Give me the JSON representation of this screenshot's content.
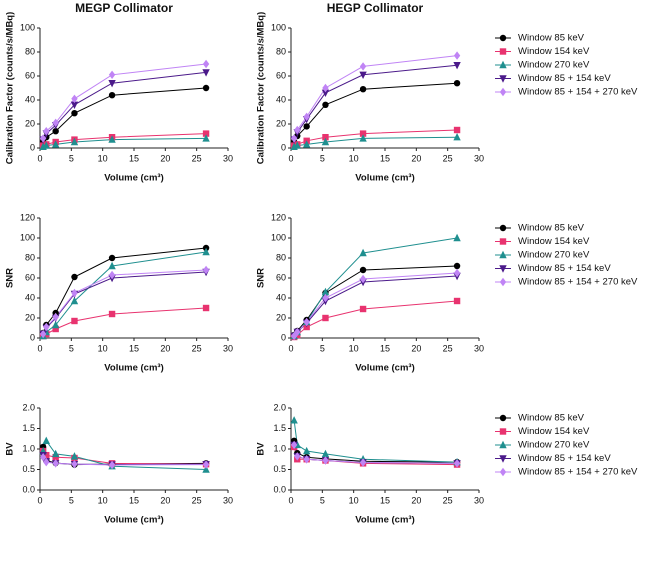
{
  "chart_data": [
    {
      "type": "line",
      "title": "MEGP Collimator",
      "x_label": "Volume (cm³)",
      "y_label": "Calibration Factor (counts/s/MBq)",
      "x": [
        0.5,
        1,
        2.5,
        5.5,
        11.5,
        26.5
      ],
      "xlim": [
        0,
        30
      ],
      "xticks": [
        0,
        5,
        10,
        15,
        20,
        25,
        30
      ],
      "ylim": [
        0,
        100
      ],
      "yticks": [
        0,
        20,
        40,
        60,
        80,
        100
      ],
      "series": [
        {
          "color": "#000000",
          "marker": "circle",
          "values": [
            5,
            9,
            14,
            29,
            44,
            50
          ]
        },
        {
          "color": "#e8336f",
          "marker": "square",
          "values": [
            2,
            3,
            5,
            7,
            9,
            12
          ]
        },
        {
          "color": "#1f8f8f",
          "marker": "triangle",
          "values": [
            1,
            2,
            3,
            5,
            7,
            8
          ]
        },
        {
          "color": "#4b1a8a",
          "marker": "triangle-down",
          "values": [
            7,
            12,
            19,
            36,
            54,
            63
          ]
        },
        {
          "color": "#c084f5",
          "marker": "diamond",
          "values": [
            8,
            14,
            21,
            41,
            61,
            70
          ]
        }
      ]
    },
    {
      "type": "line",
      "title": "HEGP Collimator",
      "x_label": "Volume (cm³)",
      "y_label": "Calibration Factor (counts/s/MBq)",
      "x": [
        0.5,
        1,
        2.5,
        5.5,
        11.5,
        26.5
      ],
      "xlim": [
        0,
        30
      ],
      "xticks": [
        0,
        5,
        10,
        15,
        20,
        25,
        30
      ],
      "ylim": [
        0,
        100
      ],
      "yticks": [
        0,
        20,
        40,
        60,
        80,
        100
      ],
      "legend": "outside-right",
      "series": [
        {
          "name": "Window 85 keV",
          "color": "#000000",
          "marker": "circle",
          "values": [
            5,
            10,
            18,
            36,
            49,
            54
          ]
        },
        {
          "name": "Window 154 keV",
          "color": "#e8336f",
          "marker": "square",
          "values": [
            2,
            3,
            6,
            9,
            12,
            15
          ]
        },
        {
          "name": "Window 270 keV",
          "color": "#1f8f8f",
          "marker": "triangle",
          "values": [
            1,
            2,
            3,
            5,
            8,
            9
          ]
        },
        {
          "name": "Window 85 + 154 keV",
          "color": "#4b1a8a",
          "marker": "triangle-down",
          "values": [
            7,
            13,
            24,
            46,
            61,
            69
          ]
        },
        {
          "name": "Window 85 + 154 + 270 keV",
          "color": "#c084f5",
          "marker": "diamond",
          "values": [
            8,
            15,
            26,
            50,
            68,
            77
          ]
        }
      ]
    },
    {
      "type": "line",
      "x_label": "Volume (cm³)",
      "y_label": "SNR",
      "x": [
        0.5,
        1,
        2.5,
        5.5,
        11.5,
        26.5
      ],
      "xlim": [
        0,
        30
      ],
      "xticks": [
        0,
        5,
        10,
        15,
        20,
        25,
        30
      ],
      "ylim": [
        0,
        120
      ],
      "yticks": [
        0,
        20,
        40,
        60,
        80,
        100,
        120
      ],
      "series": [
        {
          "color": "#000000",
          "marker": "circle",
          "values": [
            5,
            13,
            25,
            61,
            80,
            90
          ]
        },
        {
          "color": "#e8336f",
          "marker": "square",
          "values": [
            2,
            4,
            9,
            17,
            24,
            30
          ]
        },
        {
          "color": "#1f8f8f",
          "marker": "triangle",
          "values": [
            2,
            6,
            13,
            37,
            72,
            86
          ]
        },
        {
          "color": "#4b1a8a",
          "marker": "triangle-down",
          "values": [
            4,
            10,
            20,
            44,
            60,
            66
          ]
        },
        {
          "color": "#c084f5",
          "marker": "diamond",
          "values": [
            4,
            11,
            21,
            45,
            63,
            68
          ]
        }
      ]
    },
    {
      "type": "line",
      "x_label": "Volume (cm³)",
      "y_label": "SNR",
      "x": [
        0.5,
        1,
        2.5,
        5.5,
        11.5,
        26.5
      ],
      "xlim": [
        0,
        30
      ],
      "xticks": [
        0,
        5,
        10,
        15,
        20,
        25,
        30
      ],
      "ylim": [
        0,
        120
      ],
      "yticks": [
        0,
        20,
        40,
        60,
        80,
        100,
        120
      ],
      "legend": "outside-right",
      "series": [
        {
          "name": "Window 85 keV",
          "color": "#000000",
          "marker": "circle",
          "values": [
            3,
            7,
            18,
            45,
            68,
            72
          ]
        },
        {
          "name": "Window 154 keV",
          "color": "#e8336f",
          "marker": "square",
          "values": [
            1,
            3,
            11,
            20,
            29,
            37
          ]
        },
        {
          "name": "Window 270 keV",
          "color": "#1f8f8f",
          "marker": "triangle",
          "values": [
            2,
            6,
            16,
            46,
            85,
            100
          ]
        },
        {
          "name": "Window 85 + 154 keV",
          "color": "#4b1a8a",
          "marker": "triangle-down",
          "values": [
            2,
            6,
            15,
            37,
            56,
            62
          ]
        },
        {
          "name": "Window 85 + 154 + 270 keV",
          "color": "#c084f5",
          "marker": "diamond",
          "values": [
            2,
            6,
            16,
            40,
            59,
            65
          ]
        }
      ]
    },
    {
      "type": "line",
      "x_label": "Volume (cm³)",
      "y_label": "BV",
      "x": [
        0.5,
        1,
        2.5,
        5.5,
        11.5,
        26.5
      ],
      "xlim": [
        0,
        30
      ],
      "xticks": [
        0,
        5,
        10,
        15,
        20,
        25,
        30
      ],
      "ylim": [
        0,
        2
      ],
      "yticks": [
        {
          "value": 0,
          "label": "0.0"
        },
        0.5,
        {
          "value": 1,
          "label": "1.0"
        },
        1.5,
        {
          "value": 2,
          "label": "2.0"
        }
      ],
      "series": [
        {
          "color": "#000000",
          "marker": "circle",
          "values": [
            1.05,
            0.72,
            0.66,
            0.62,
            0.63,
            0.65
          ]
        },
        {
          "color": "#e8336f",
          "marker": "square",
          "values": [
            0.95,
            0.85,
            0.8,
            0.78,
            0.65,
            0.63
          ]
        },
        {
          "color": "#1f8f8f",
          "marker": "triangle",
          "values": [
            0.95,
            1.2,
            0.88,
            0.82,
            0.58,
            0.5
          ]
        },
        {
          "color": "#4b1a8a",
          "marker": "triangle-down",
          "values": [
            0.85,
            0.7,
            0.65,
            0.63,
            0.62,
            0.63
          ]
        },
        {
          "color": "#c084f5",
          "marker": "diamond",
          "values": [
            0.8,
            0.68,
            0.65,
            0.63,
            0.61,
            0.62
          ]
        }
      ]
    },
    {
      "type": "line",
      "x_label": "Volume (cm³)",
      "y_label": "BV",
      "x": [
        0.5,
        1,
        2.5,
        5.5,
        11.5,
        26.5
      ],
      "xlim": [
        0,
        30
      ],
      "xticks": [
        0,
        5,
        10,
        15,
        20,
        25,
        30
      ],
      "ylim": [
        0,
        2
      ],
      "yticks": [
        {
          "value": 0,
          "label": "0.0"
        },
        0.5,
        {
          "value": 1,
          "label": "1.0"
        },
        1.5,
        {
          "value": 2,
          "label": "2.0"
        }
      ],
      "legend": "outside-right",
      "series": [
        {
          "name": "Window 85 keV",
          "color": "#000000",
          "marker": "circle",
          "values": [
            1.2,
            0.9,
            0.8,
            0.76,
            0.7,
            0.68
          ]
        },
        {
          "name": "Window 154 keV",
          "color": "#e8336f",
          "marker": "square",
          "values": [
            1.05,
            0.75,
            0.75,
            0.72,
            0.65,
            0.62
          ]
        },
        {
          "name": "Window 270 keV",
          "color": "#1f8f8f",
          "marker": "triangle",
          "values": [
            1.7,
            1.1,
            0.95,
            0.88,
            0.75,
            0.68
          ]
        },
        {
          "name": "Window 85 + 154 keV",
          "color": "#4b1a8a",
          "marker": "triangle-down",
          "values": [
            1.1,
            0.82,
            0.75,
            0.72,
            0.67,
            0.65
          ]
        },
        {
          "name": "Window 85 + 154 + 270 keV",
          "color": "#c084f5",
          "marker": "diamond",
          "values": [
            1.1,
            0.82,
            0.75,
            0.72,
            0.67,
            0.65
          ]
        }
      ]
    }
  ]
}
